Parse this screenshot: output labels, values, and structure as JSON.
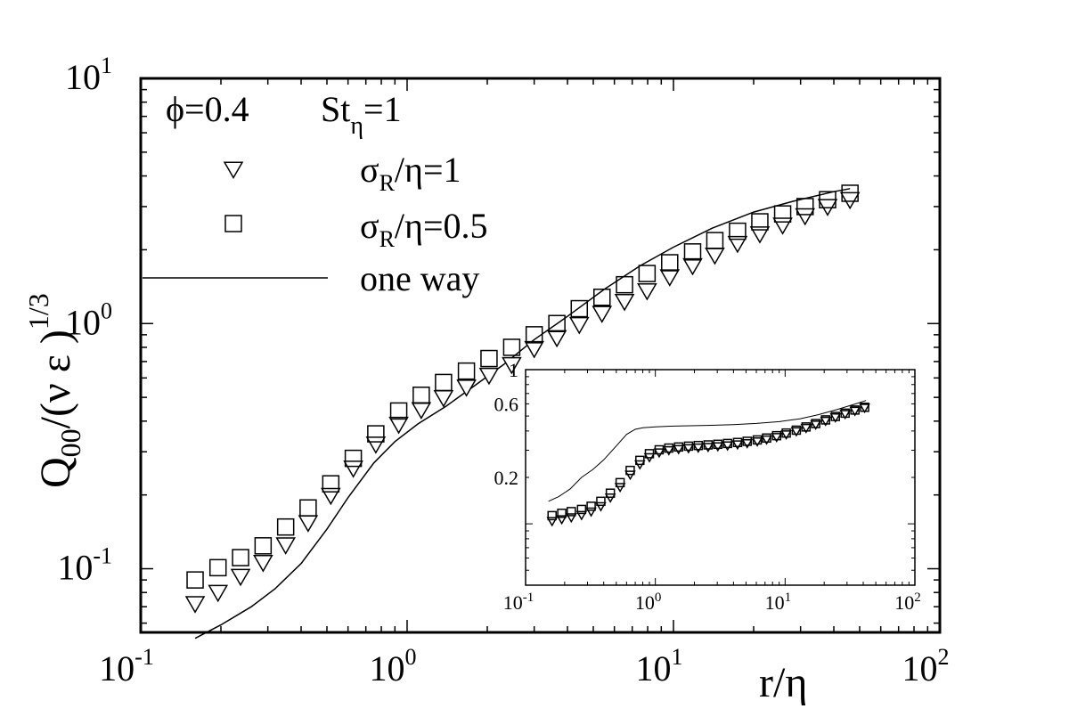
{
  "chart_data": [
    {
      "type": "scatter",
      "title": "",
      "xlabel": "r/η",
      "ylabel": "Q00/(ν ε)^1/3",
      "ylabel_parts": {
        "base": "Q",
        "sub": "00",
        "mid": "/(ν ε )",
        "sup": "1/3"
      },
      "xscale": "log",
      "yscale": "log",
      "xlim": [
        0.1,
        100
      ],
      "ylim": [
        0.055,
        10
      ],
      "x_ticks": [
        {
          "value": 0.1,
          "base": "10",
          "exp": "-1"
        },
        {
          "value": 1,
          "base": "10",
          "exp": "0"
        },
        {
          "value": 10,
          "base": "10",
          "exp": "1"
        },
        {
          "value": 100,
          "base": "10",
          "exp": "2"
        }
      ],
      "y_ticks": [
        {
          "value": 0.1,
          "base": "10",
          "exp": "-1"
        },
        {
          "value": 1,
          "base": "10",
          "exp": "0"
        },
        {
          "value": 10,
          "base": "10",
          "exp": "1"
        }
      ],
      "annotation": {
        "phi": "ϕ=0.4",
        "st": "St",
        "st_sub": "η",
        "st_value": "=1"
      },
      "legend_position": "top-left",
      "series": [
        {
          "label_base": "σ",
          "label_sub": "R",
          "label_rest": "/η=1",
          "marker": "triangle-down",
          "x": [
            0.16,
            0.195,
            0.237,
            0.288,
            0.35,
            0.425,
            0.517,
            0.628,
            0.763,
            0.93,
            1.13,
            1.37,
            1.67,
            2.03,
            2.47,
            3.0,
            3.65,
            4.43,
            5.39,
            6.55,
            7.96,
            9.68,
            11.8,
            14.3,
            17.4,
            21.1,
            25.7,
            31.2,
            37.9,
            46.0
          ],
          "y": [
            0.072,
            0.08,
            0.093,
            0.106,
            0.125,
            0.154,
            0.199,
            0.257,
            0.322,
            0.388,
            0.445,
            0.498,
            0.55,
            0.615,
            0.68,
            0.79,
            0.875,
            0.99,
            1.1,
            1.23,
            1.36,
            1.55,
            1.72,
            1.9,
            2.12,
            2.32,
            2.52,
            2.75,
            3.0,
            3.2
          ]
        },
        {
          "label_base": "σ",
          "label_sub": "R",
          "label_rest": "/η=0.5",
          "marker": "square",
          "x": [
            0.16,
            0.195,
            0.237,
            0.288,
            0.35,
            0.425,
            0.517,
            0.628,
            0.763,
            0.93,
            1.13,
            1.37,
            1.67,
            2.03,
            2.47,
            3.0,
            3.65,
            4.43,
            5.39,
            6.55,
            7.96,
            9.68,
            11.8,
            14.3,
            17.4,
            21.1,
            25.7,
            31.2,
            37.9,
            46.0
          ],
          "y": [
            0.09,
            0.101,
            0.111,
            0.124,
            0.148,
            0.177,
            0.222,
            0.282,
            0.355,
            0.44,
            0.51,
            0.575,
            0.64,
            0.72,
            0.8,
            0.9,
            1.0,
            1.15,
            1.28,
            1.44,
            1.6,
            1.77,
            1.96,
            2.18,
            2.38,
            2.6,
            2.8,
            3.0,
            3.2,
            3.4
          ]
        },
        {
          "label": "one way",
          "marker": "line",
          "x": [
            0.16,
            0.2,
            0.26,
            0.32,
            0.4,
            0.5,
            0.6,
            0.75,
            0.9,
            1.1,
            1.4,
            1.8,
            2.3,
            3.0,
            4.0,
            5.5,
            7.5,
            10,
            14,
            20,
            28,
            40,
            46
          ],
          "y": [
            0.052,
            0.059,
            0.07,
            0.083,
            0.105,
            0.145,
            0.195,
            0.27,
            0.33,
            0.39,
            0.46,
            0.56,
            0.68,
            0.86,
            1.07,
            1.38,
            1.72,
            2.05,
            2.45,
            2.85,
            3.15,
            3.45,
            3.55
          ]
        }
      ]
    },
    {
      "type": "scatter",
      "title": "",
      "xlabel": "",
      "ylabel": "",
      "xscale": "log",
      "yscale": "log",
      "xlim": [
        0.1,
        100
      ],
      "ylim": [
        0.04,
        1.0
      ],
      "x_ticks": [
        {
          "value": 0.1,
          "base": "10",
          "exp": "-1"
        },
        {
          "value": 1,
          "base": "10",
          "exp": "0"
        },
        {
          "value": 10,
          "base": "10",
          "exp": "1"
        },
        {
          "value": 100,
          "base": "10",
          "exp": "2"
        }
      ],
      "y_ticks": [
        {
          "value": 0.2,
          "label": "0.2"
        },
        {
          "value": 0.6,
          "label": "0.6"
        },
        {
          "value": 1.0,
          "label": "1"
        }
      ],
      "series": [
        {
          "marker": "triangle-down",
          "x": [
            0.16,
            0.19,
            0.225,
            0.27,
            0.32,
            0.38,
            0.45,
            0.535,
            0.64,
            0.76,
            0.9,
            1.07,
            1.27,
            1.51,
            1.8,
            2.14,
            2.55,
            3.03,
            3.6,
            4.3,
            5.1,
            6.1,
            7.2,
            8.6,
            10.2,
            12.2,
            14.5,
            17.2,
            20.5,
            24.4,
            29.0,
            34.5,
            41.0
          ],
          "y": [
            0.104,
            0.107,
            0.11,
            0.114,
            0.12,
            0.13,
            0.148,
            0.173,
            0.208,
            0.243,
            0.27,
            0.29,
            0.3,
            0.305,
            0.309,
            0.312,
            0.315,
            0.318,
            0.322,
            0.327,
            0.333,
            0.342,
            0.352,
            0.365,
            0.38,
            0.398,
            0.418,
            0.44,
            0.465,
            0.49,
            0.515,
            0.54,
            0.565
          ]
        },
        {
          "marker": "square",
          "x": [
            0.16,
            0.19,
            0.225,
            0.27,
            0.32,
            0.38,
            0.45,
            0.535,
            0.64,
            0.76,
            0.9,
            1.07,
            1.27,
            1.51,
            1.8,
            2.14,
            2.55,
            3.03,
            3.6,
            4.3,
            5.1,
            6.1,
            7.2,
            8.6,
            10.2,
            12.2,
            14.5,
            17.2,
            20.5,
            24.4,
            29.0,
            34.5,
            41.0
          ],
          "y": [
            0.113,
            0.117,
            0.12,
            0.124,
            0.13,
            0.14,
            0.158,
            0.185,
            0.222,
            0.258,
            0.285,
            0.302,
            0.31,
            0.315,
            0.319,
            0.322,
            0.325,
            0.328,
            0.332,
            0.337,
            0.343,
            0.35,
            0.36,
            0.373,
            0.388,
            0.405,
            0.425,
            0.447,
            0.472,
            0.497,
            0.522,
            0.547,
            0.57
          ]
        },
        {
          "marker": "line",
          "x": [
            0.15,
            0.18,
            0.22,
            0.27,
            0.33,
            0.4,
            0.5,
            0.6,
            0.7,
            0.8,
            1.0,
            1.3,
            1.7,
            2.5,
            4.0,
            6.0,
            9.0,
            13,
            18,
            25,
            35,
            42
          ],
          "y": [
            0.14,
            0.15,
            0.168,
            0.2,
            0.225,
            0.26,
            0.32,
            0.38,
            0.41,
            0.42,
            0.425,
            0.43,
            0.432,
            0.435,
            0.44,
            0.448,
            0.46,
            0.48,
            0.51,
            0.55,
            0.6,
            0.63
          ]
        }
      ]
    }
  ]
}
